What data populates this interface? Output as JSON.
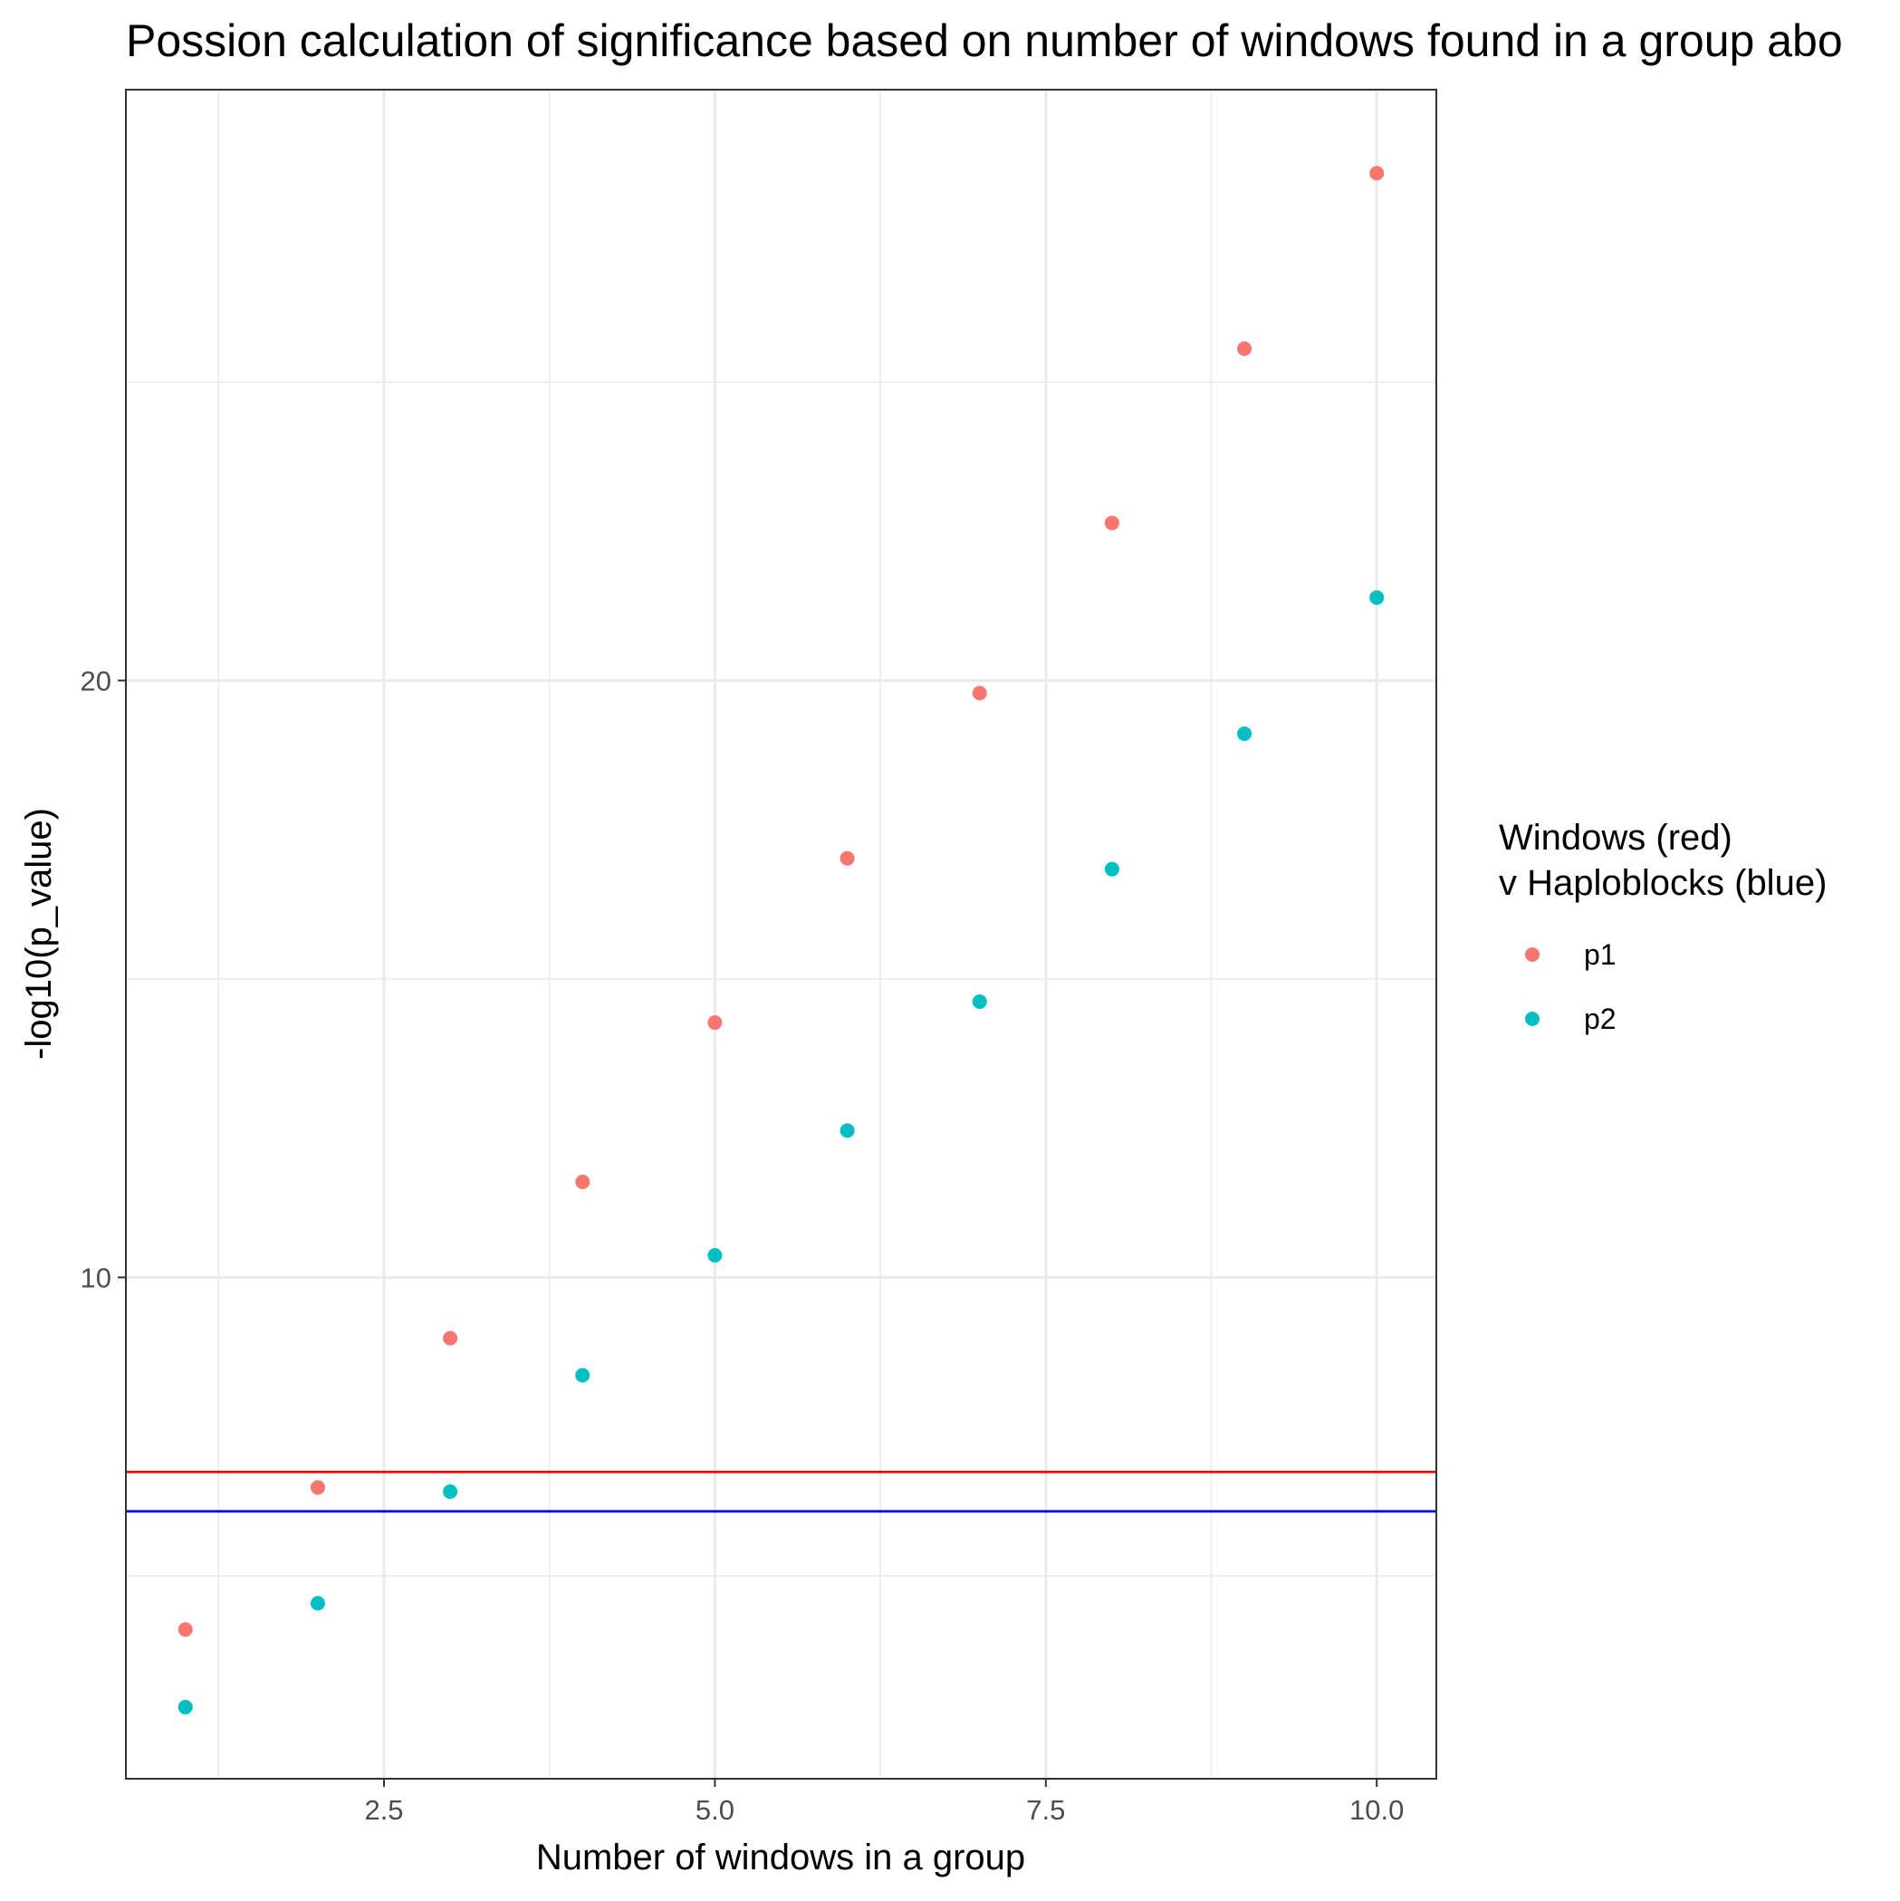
{
  "chart_data": {
    "type": "scatter",
    "title": "Possion calculation of significance based on number of windows found in a group abo",
    "xlabel": "Number of windows in a group",
    "ylabel": "-log10(p_value)",
    "xlim": [
      0.55,
      10.45
    ],
    "ylim": [
      1.6,
      29.9
    ],
    "x_ticks": [
      2.5,
      5.0,
      7.5,
      10.0
    ],
    "x_tick_labels": [
      "2.5",
      "5.0",
      "7.5",
      "10.0"
    ],
    "y_ticks": [
      10,
      20
    ],
    "y_tick_labels": [
      "10",
      "20"
    ],
    "grid": true,
    "legend": {
      "title_lines": [
        "Windows (red)",
        "v Haploblocks (blue)"
      ],
      "placement": "right"
    },
    "series": [
      {
        "name": "p1",
        "color": "#F8766D",
        "x": [
          1,
          2,
          3,
          4,
          5,
          6,
          7,
          8,
          9,
          10
        ],
        "y": [
          4.1,
          6.48,
          8.98,
          11.6,
          14.27,
          17.02,
          19.79,
          22.64,
          25.56,
          28.5
        ]
      },
      {
        "name": "p2",
        "color": "#00BFC4",
        "x": [
          1,
          2,
          3,
          4,
          5,
          6,
          7,
          8,
          9,
          10
        ],
        "y": [
          2.8,
          4.54,
          6.41,
          8.36,
          10.37,
          12.46,
          14.62,
          16.84,
          19.11,
          21.39
        ]
      }
    ],
    "reference_lines": [
      {
        "y": 6.74,
        "color": "#FF0000"
      },
      {
        "y": 6.08,
        "color": "#0000FF"
      }
    ]
  }
}
